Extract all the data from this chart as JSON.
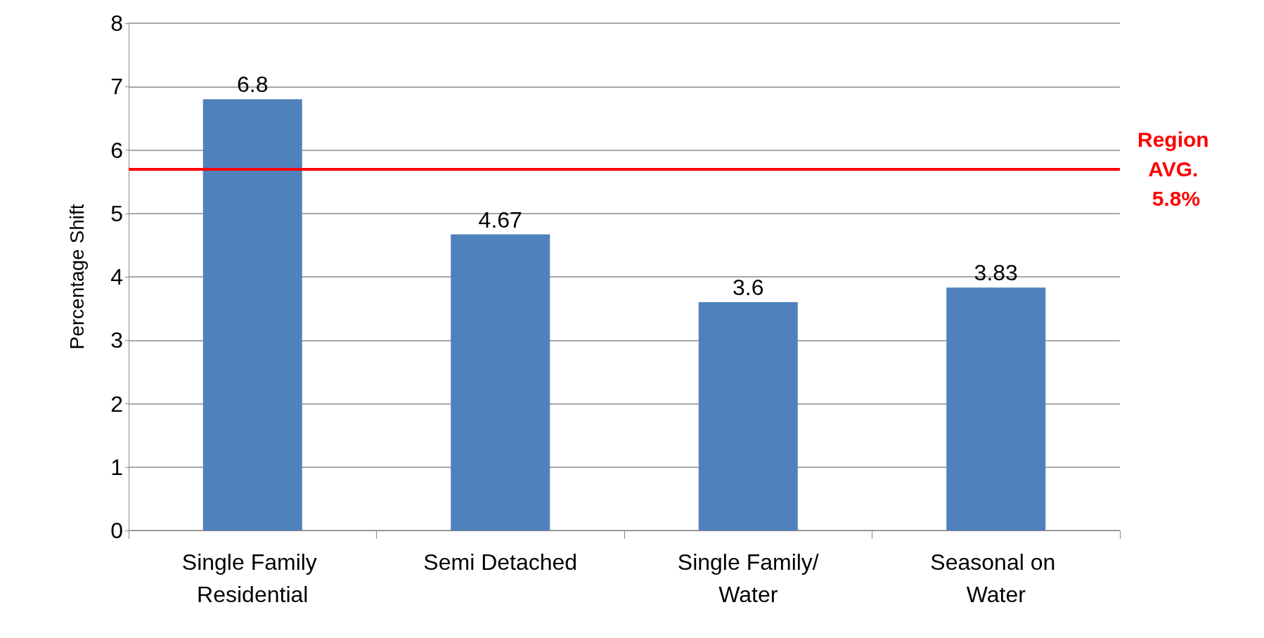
{
  "chart_data": {
    "type": "bar",
    "ylabel": "Percentage Shift",
    "categories": [
      "Single Family Residential",
      "Semi Detached",
      "Single Family/Water",
      "Seasonal on Water"
    ],
    "values": [
      6.8,
      4.67,
      3.6,
      3.83
    ],
    "color": "#4f81bd",
    "data_labels": true,
    "ylim": [
      0,
      8
    ],
    "yticks": [
      0,
      1,
      2,
      3,
      4,
      5,
      6,
      7,
      8
    ],
    "grid": "y",
    "ref_lines": [
      {
        "axis": "y",
        "value": 5.7,
        "label": "Region AVG. 5.8%",
        "color": "#ff0000",
        "line_style": "solid"
      }
    ]
  }
}
